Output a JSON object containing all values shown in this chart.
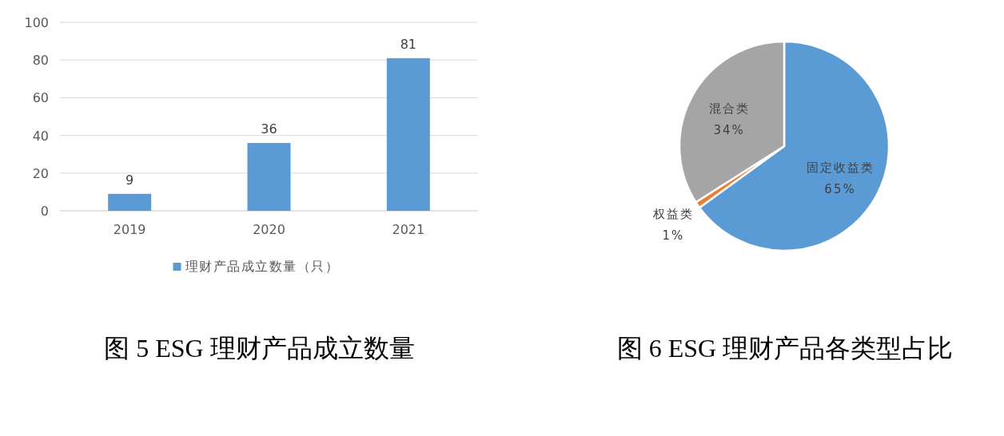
{
  "chart_data": [
    {
      "type": "bar",
      "title": "图 5 ESG 理财产品成立数量",
      "categories": [
        "2019",
        "2020",
        "2021"
      ],
      "series": [
        {
          "name": "理财产品成立数量（只）",
          "color": "#5b9bd5",
          "values": [
            9,
            36,
            81
          ]
        }
      ],
      "ylim": [
        0,
        100
      ],
      "yticks": [
        0,
        20,
        40,
        60,
        80,
        100
      ],
      "grid": "y",
      "legend": "bottom",
      "data_labels": true
    },
    {
      "type": "pie",
      "title": "图 6 ESG 理财产品各类型占比",
      "categories": [
        "固定收益类",
        "权益类",
        "混合类"
      ],
      "values": [
        65,
        1,
        34
      ],
      "colors": [
        "#5b9bd5",
        "#ed7d31",
        "#a5a5a5"
      ],
      "value_labels": [
        "65%",
        "1%",
        "34%"
      ]
    }
  ]
}
